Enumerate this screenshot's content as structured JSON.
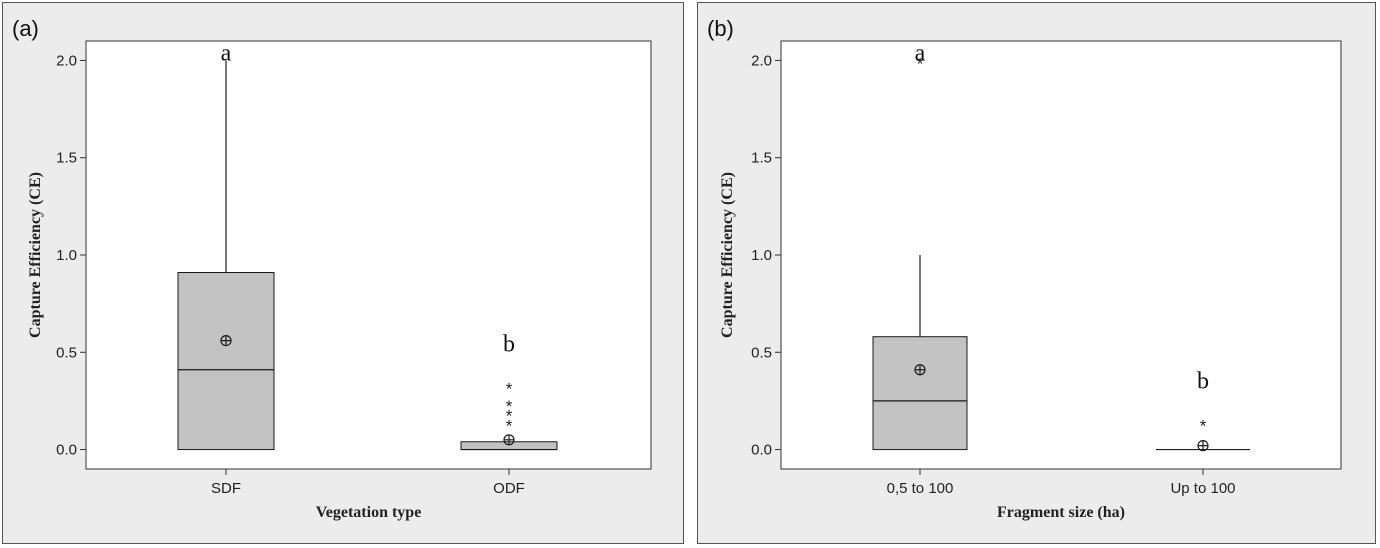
{
  "chart_data": [
    {
      "type": "box",
      "panel_label": "(a)",
      "xlabel": "Vegetation type",
      "ylabel": "Capture Efficiency (CE)",
      "ylim": [
        -0.1,
        2.1
      ],
      "yticks": [
        "0.0",
        "0.5",
        "1.0",
        "1.5",
        "2.0"
      ],
      "grid": false,
      "categories": [
        "SDF",
        "ODF"
      ],
      "boxes": [
        {
          "category": "SDF",
          "min": 0.0,
          "q1": 0.0,
          "median": 0.41,
          "q3": 0.91,
          "max": 2.0,
          "mean": 0.56,
          "outliers": [],
          "letter": "a"
        },
        {
          "category": "ODF",
          "min": 0.0,
          "q1": 0.0,
          "median": 0.0,
          "q3": 0.04,
          "max": 0.04,
          "mean": 0.05,
          "outliers": [
            0.14,
            0.19,
            0.24,
            0.33
          ],
          "letter": "b"
        }
      ]
    },
    {
      "type": "box",
      "panel_label": "(b)",
      "xlabel": "Fragment size (ha)",
      "ylabel": "Capture Efficiency (CE)",
      "ylim": [
        -0.1,
        2.1
      ],
      "yticks": [
        "0.0",
        "0.5",
        "1.0",
        "1.5",
        "2.0"
      ],
      "grid": false,
      "categories": [
        "0,5 to 100",
        "Up to 100"
      ],
      "boxes": [
        {
          "category": "0,5 to 100",
          "min": 0.0,
          "q1": 0.0,
          "median": 0.25,
          "q3": 0.58,
          "max": 1.0,
          "mean": 0.41,
          "outliers": [
            2.0
          ],
          "letter": "a"
        },
        {
          "category": "Up to 100",
          "min": 0.0,
          "q1": 0.0,
          "median": 0.0,
          "q3": 0.0,
          "max": 0.0,
          "mean": 0.02,
          "outliers": [
            0.14
          ],
          "letter": "b"
        }
      ]
    }
  ]
}
